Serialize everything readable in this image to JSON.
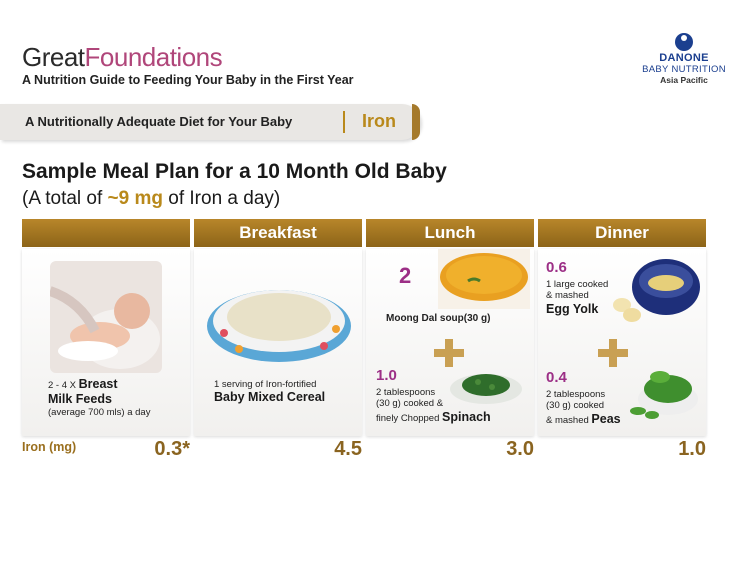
{
  "header": {
    "brand_part1": "Great",
    "brand_part2": "Foundations",
    "tagline": "A Nutrition Guide to Feeding Your Baby in the First Year",
    "logo_line1": "DANONE",
    "logo_line2": "BABY NUTRITION",
    "logo_line3": "Asia Pacific"
  },
  "banner": {
    "text": "A Nutritionally Adequate Diet for Your Baby",
    "topic": "Iron"
  },
  "title": "Sample Meal Plan for a 10 Month Old Baby",
  "subtitle_prefix": "(A total of ",
  "subtitle_value": "~9 mg",
  "subtitle_suffix": " of Iron a day)",
  "columns": {
    "breakfast": "Breakfast",
    "lunch": "Lunch",
    "dinner": "Dinner"
  },
  "milk": {
    "qty": "2 - 4 X",
    "name_line1": "Breast",
    "name_line2": "Milk Feeds",
    "note": "(average 700 mls) a day"
  },
  "breakfast": {
    "desc": "1 serving of Iron-fortified",
    "name": "Baby Mixed Cereal"
  },
  "lunch": {
    "item1_num": "2",
    "item1_name": "Moong Dal soup(30 g)",
    "item2_num": "1.0",
    "item2_desc1": "2 tablespoons",
    "item2_desc2": "(30 g) cooked &",
    "item2_desc3": "finely Chopped",
    "item2_name": "Spinach"
  },
  "dinner": {
    "item1_num": "0.6",
    "item1_desc1": "1 large cooked",
    "item1_desc2": "& mashed",
    "item1_name": "Egg Yolk",
    "item2_num": "0.4",
    "item2_desc1": "2 tablespoons",
    "item2_desc2": "(30 g) cooked",
    "item2_desc3": "& mashed",
    "item2_name": "Peas"
  },
  "iron": {
    "label": "Iron (mg)",
    "milk": "0.3*",
    "breakfast": "4.5",
    "lunch": "3.0",
    "dinner": "1.0"
  },
  "colors": {
    "gold": "#b9891b",
    "brand_pink": "#b0467a",
    "number_purple": "#9c2f86",
    "header_gold": "#a57a2c"
  },
  "icons": [
    "breastfeeding-photo",
    "cereal-bowl-photo",
    "soup-bowl-photo",
    "spinach-plate-photo",
    "egg-yolk-bowl-photo",
    "peas-bowl-photo",
    "danone-logo-icon",
    "plus-icon"
  ]
}
